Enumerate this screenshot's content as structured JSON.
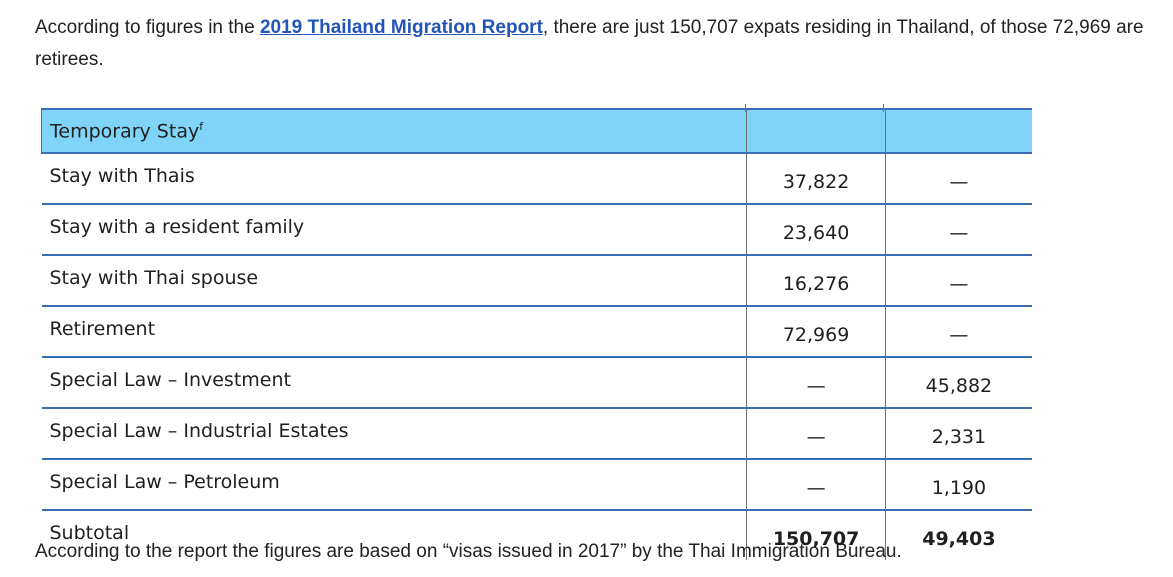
{
  "intro": {
    "before": "According to figures in the ",
    "link": "2019 Thailand Migration Report",
    "after": ", there are just 150,707 expats residing in Thailand, of those 72,969 are retirees."
  },
  "table": {
    "header": {
      "label": "Temporary Stay",
      "note": "f",
      "c1": "",
      "c2": ""
    },
    "rows": [
      {
        "label": "Stay with Thais",
        "c1": "37,822",
        "c2": "—"
      },
      {
        "label": "Stay with a resident family",
        "c1": "23,640",
        "c2": "—"
      },
      {
        "label": "Stay with Thai spouse",
        "c1": "16,276",
        "c2": "—"
      },
      {
        "label": "Retirement",
        "c1": "72,969",
        "c2": "—"
      },
      {
        "label": "Special Law – Investment",
        "c1": "—",
        "c2": "45,882"
      },
      {
        "label": "Special Law – Industrial Estates",
        "c1": "—",
        "c2": "2,331"
      },
      {
        "label": "Special Law – Petroleum",
        "c1": "—",
        "c2": "1,190"
      }
    ],
    "subtotal": {
      "label": "Subtotal",
      "c1": "150,707",
      "c2": "49,403"
    }
  },
  "closing": "According to the report the figures are based on “visas issued in 2017” by the Thai Immigration Bureau.",
  "colors": {
    "header_fill": "#7fd4f7",
    "rule": "#3b6db4",
    "link": "#2255b7"
  }
}
